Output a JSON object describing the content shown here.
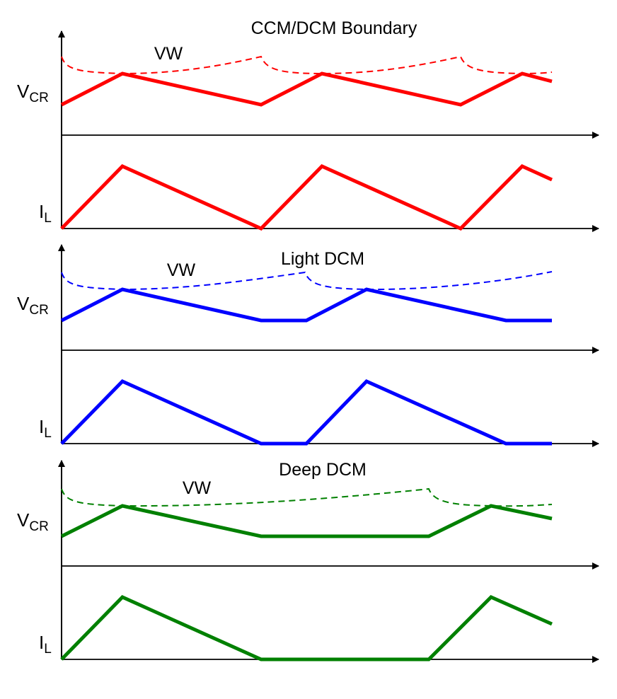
{
  "colors": {
    "boundary": "#ff0000",
    "light": "#0000ff",
    "deep": "#008000",
    "axis": "#000000"
  },
  "panels": [
    {
      "key": "boundary",
      "title": "CCM/DCM Boundary",
      "vw_label": "VW",
      "vcr_main": "V",
      "vcr_sub": "CR",
      "il_main": "I",
      "il_sub": "L"
    },
    {
      "key": "light",
      "title": "Light DCM",
      "vw_label": "VW",
      "vcr_main": "V",
      "vcr_sub": "CR",
      "il_main": "I",
      "il_sub": "L"
    },
    {
      "key": "deep",
      "title": "Deep DCM",
      "vw_label": "VW",
      "vcr_main": "V",
      "vcr_sub": "CR",
      "il_main": "I",
      "il_sub": "L"
    }
  ]
}
